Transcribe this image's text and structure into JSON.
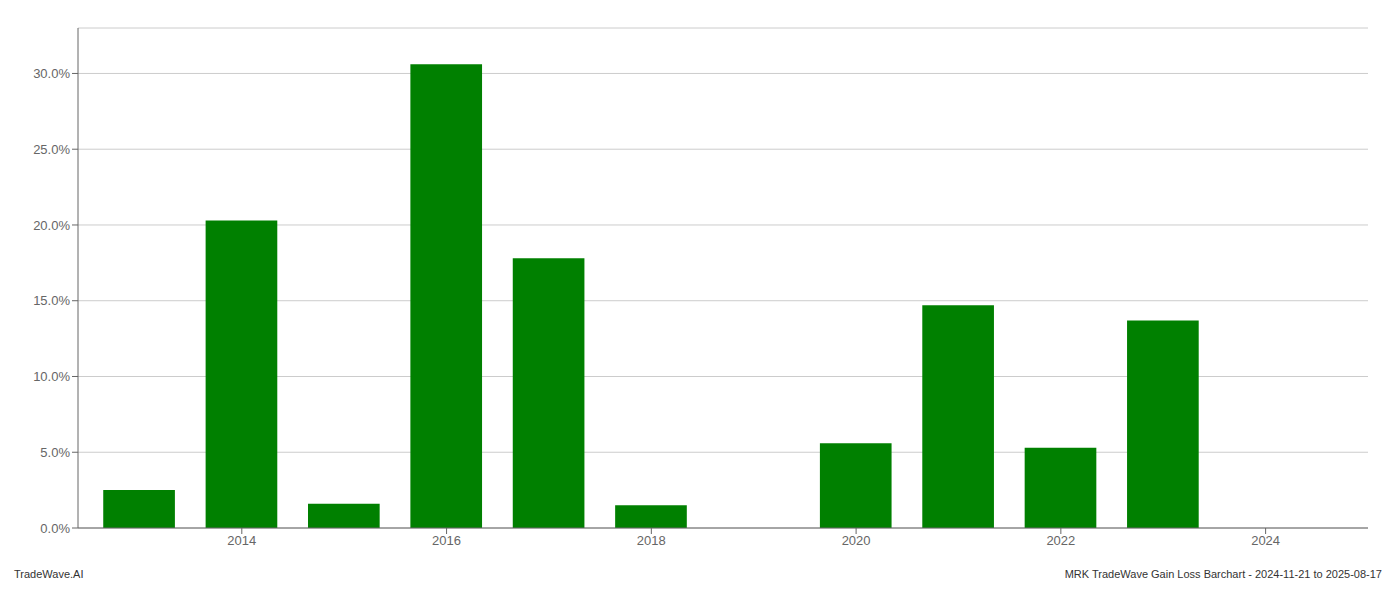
{
  "chart_data": {
    "type": "bar",
    "x": [
      2013,
      2014,
      2015,
      2016,
      2017,
      2018,
      2019,
      2020,
      2021,
      2022,
      2023,
      2024
    ],
    "values": [
      2.5,
      20.3,
      1.6,
      30.6,
      17.8,
      1.5,
      0.0,
      5.6,
      14.7,
      5.3,
      13.7,
      0.0
    ],
    "color": "#008000",
    "xlim": [
      2012.4,
      2025.0
    ],
    "xticks": [
      2014,
      2016,
      2018,
      2020,
      2022,
      2024
    ],
    "ylim": [
      0,
      33
    ],
    "yticks": [
      {
        "value": 0.0,
        "label": "0.0%"
      },
      {
        "value": 5.0,
        "label": "5.0%"
      },
      {
        "value": 10.0,
        "label": "10.0%"
      },
      {
        "value": 15.0,
        "label": "15.0%"
      },
      {
        "value": 20.0,
        "label": "20.0%"
      },
      {
        "value": 25.0,
        "label": "25.0%"
      },
      {
        "value": 30.0,
        "label": "30.0%"
      }
    ],
    "grid": true,
    "annotations": [
      "TradeWave.AI",
      "MRK TradeWave Gain Loss Barchart - 2024-11-21 to 2025-08-17"
    ]
  }
}
